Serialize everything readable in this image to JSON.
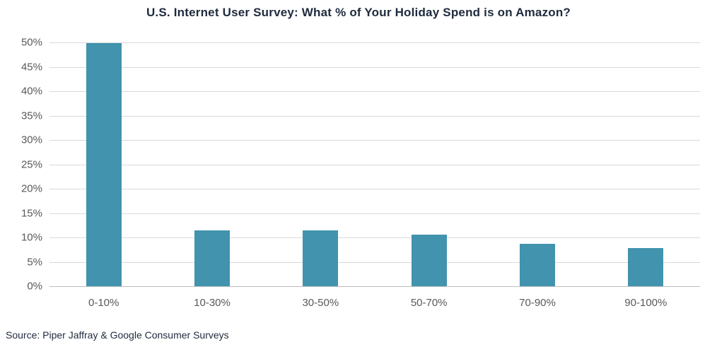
{
  "chart_data": {
    "type": "bar",
    "title": "U.S. Internet User Survey: What % of Your Holiday Spend is on Amazon?",
    "categories": [
      "0-10%",
      "10-30%",
      "30-50%",
      "50-70%",
      "70-90%",
      "90-100%"
    ],
    "values": [
      49.8,
      11.5,
      11.5,
      10.6,
      8.7,
      7.9
    ],
    "xlabel": "",
    "ylabel": "",
    "ylim": [
      0,
      50
    ],
    "ytick_step": 5,
    "ytick_suffix": "%",
    "grid": "horizontal",
    "legend": "none",
    "bar_color": "#4293ad",
    "source": "Source: Piper Jaffray & Google Consumer Surveys"
  }
}
